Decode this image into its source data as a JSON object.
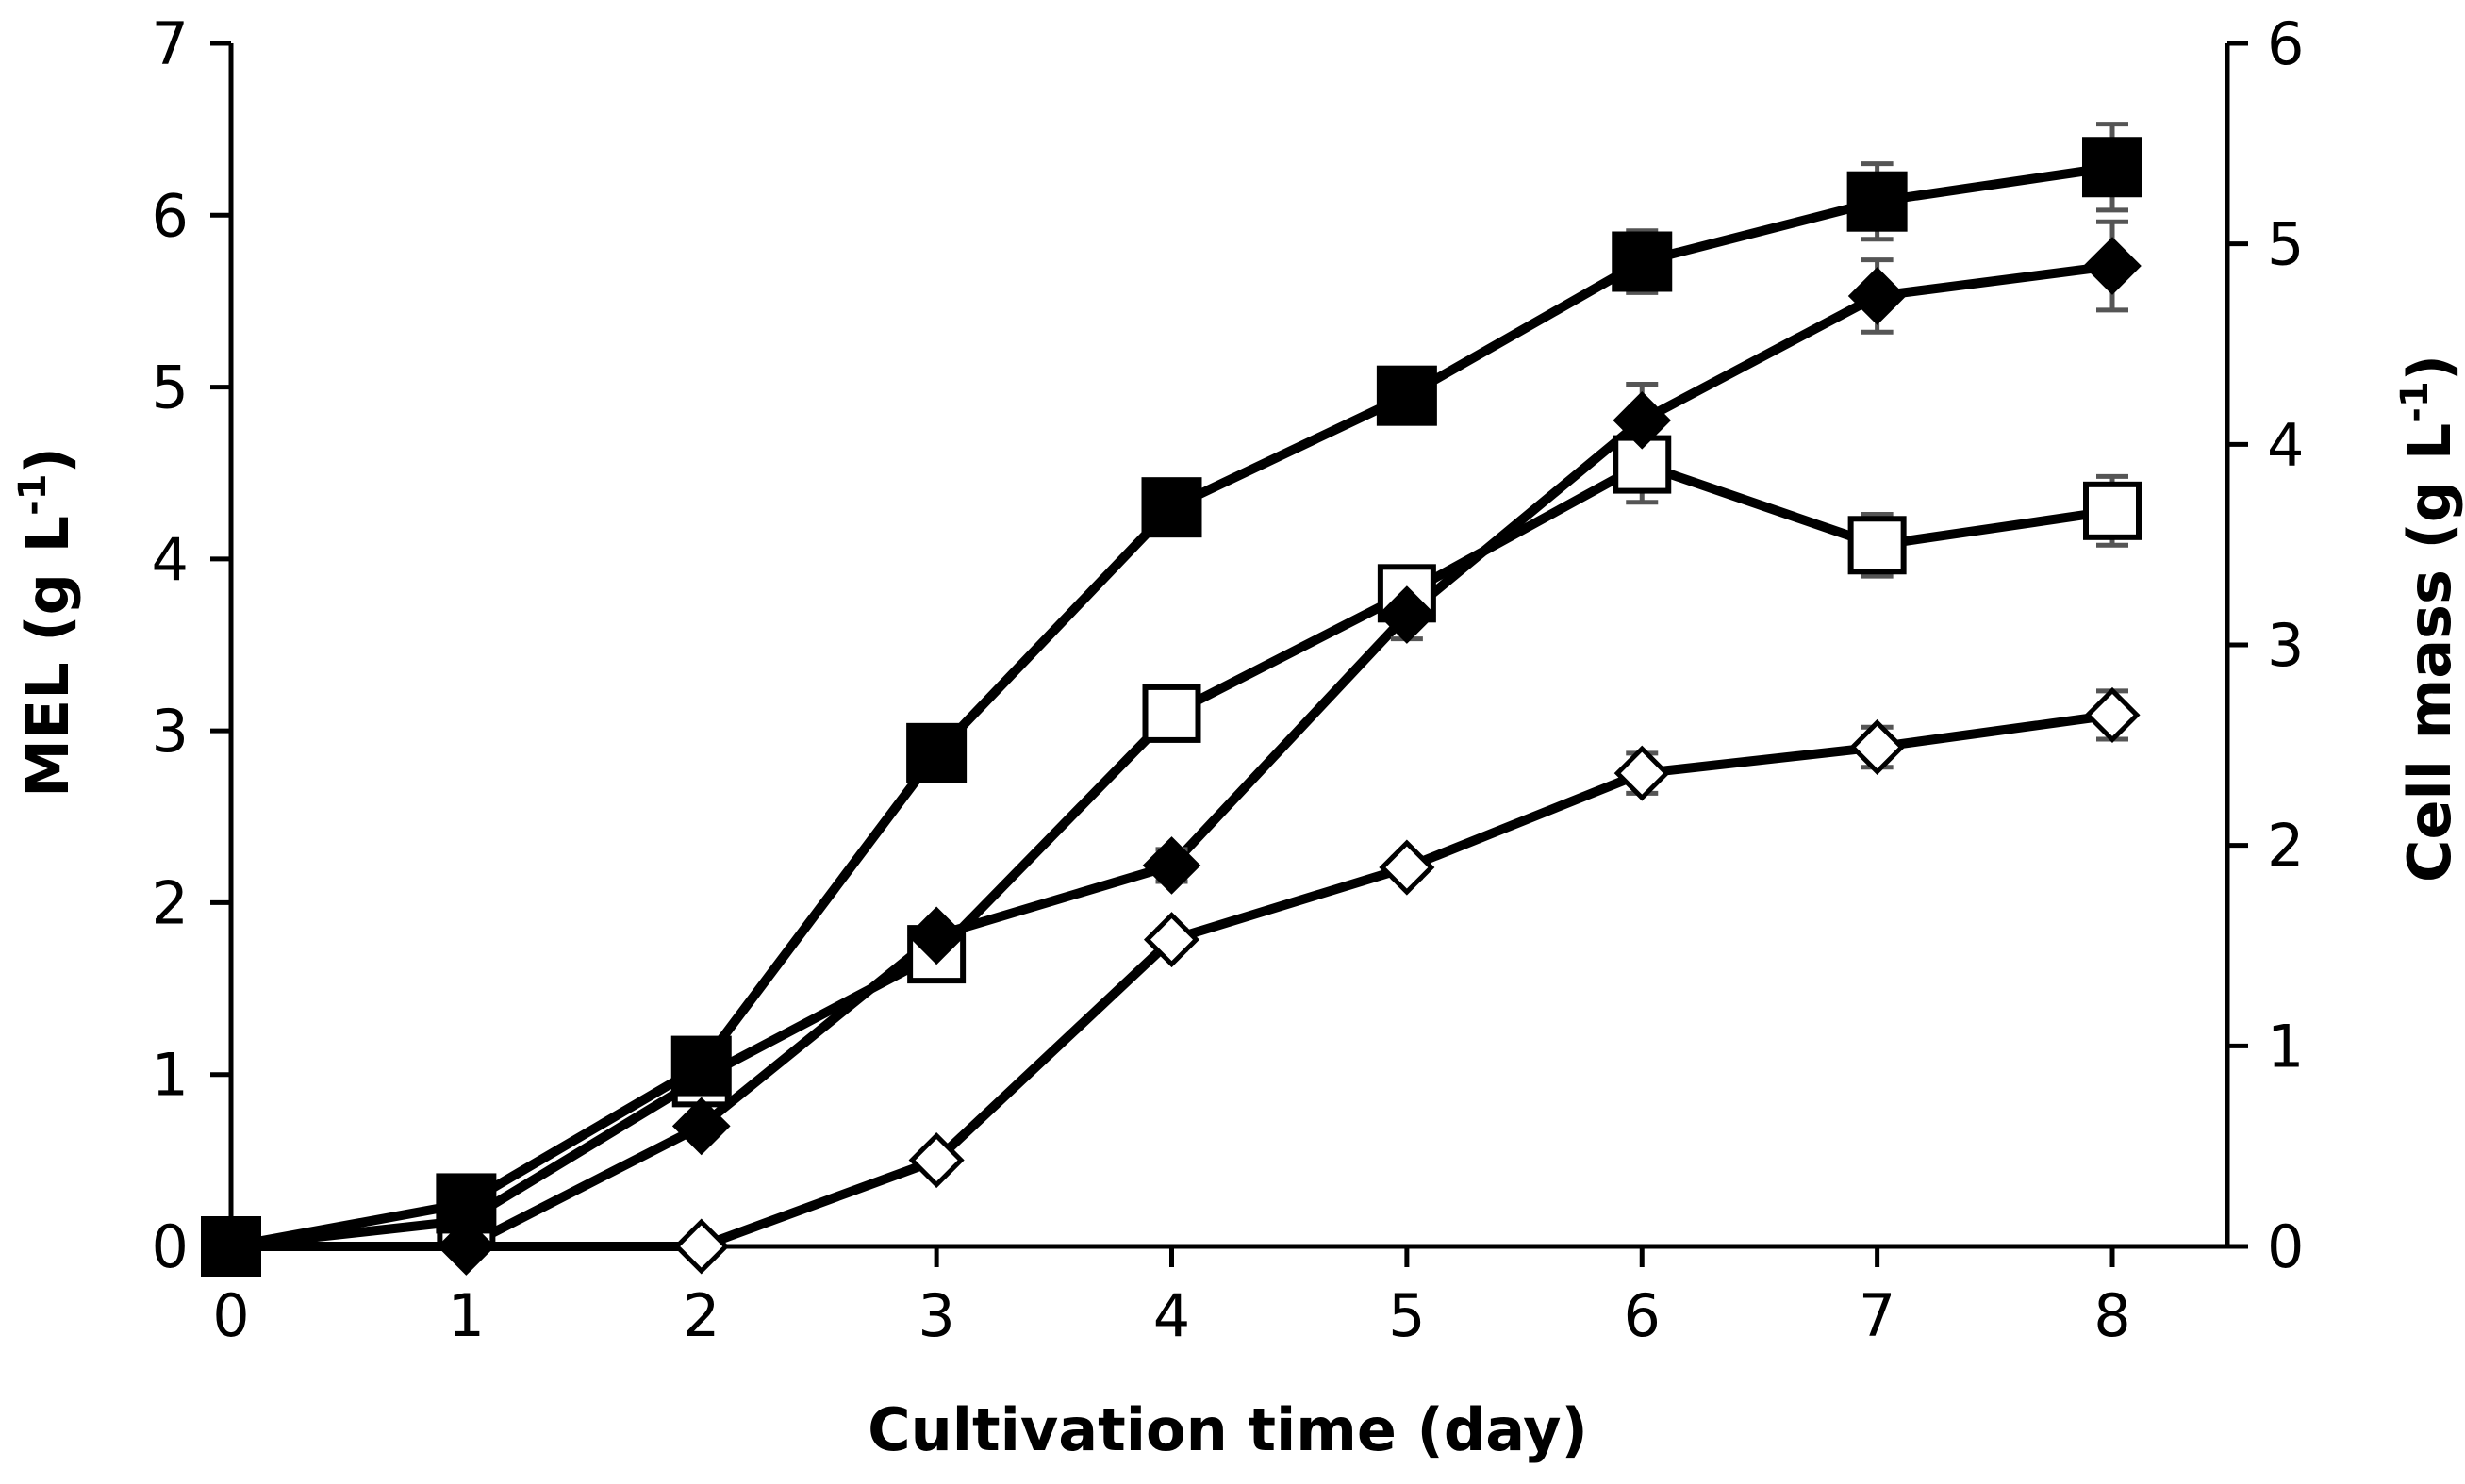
{
  "chart_data": {
    "type": "line",
    "xlabel": "Cultivation time (day)",
    "ylabel": "MEL (g L",
    "ylabel_sup": "-1",
    "ylabel_close": ")",
    "y2label": "Cell mass (g L",
    "y2label_sup": "-1",
    "y2label_close": ")",
    "x": [
      0,
      1,
      2,
      3,
      4,
      5,
      6,
      7,
      8
    ],
    "x_ticks": [
      "0",
      "1",
      "2",
      "3",
      "4",
      "5",
      "6",
      "7",
      "8"
    ],
    "ylim": [
      0,
      7
    ],
    "y_ticks": [
      "0",
      "1",
      "2",
      "3",
      "4",
      "5",
      "6",
      "7"
    ],
    "y2lim": [
      0,
      6
    ],
    "y2_ticks": [
      "0",
      "1",
      "2",
      "3",
      "4",
      "5",
      "6"
    ],
    "grid": false,
    "legend": "none",
    "series": [
      {
        "name": "MEL (filled square)",
        "axis": "left",
        "marker": "square",
        "filled": true,
        "values": [
          0,
          0.25,
          1.05,
          2.87,
          4.3,
          4.95,
          5.73,
          6.08,
          6.28
        ],
        "errors": [
          0,
          0.05,
          0.05,
          0.06,
          0.08,
          0.12,
          0.18,
          0.22,
          0.25
        ]
      },
      {
        "name": "Cell mass (filled diamond)",
        "axis": "right",
        "marker": "diamond",
        "filled": true,
        "values": [
          0,
          0.0,
          0.6,
          1.55,
          1.9,
          3.15,
          4.12,
          4.74,
          4.89
        ],
        "errors": [
          0,
          0.02,
          0.04,
          0.05,
          0.08,
          0.12,
          0.18,
          0.18,
          0.22
        ]
      },
      {
        "name": "MEL (open square)",
        "axis": "left",
        "marker": "square",
        "filled": false,
        "values": [
          0,
          0.15,
          0.98,
          1.7,
          3.1,
          3.8,
          4.55,
          4.08,
          4.28
        ],
        "errors": [
          0,
          0.04,
          0.05,
          0.08,
          0.1,
          0.12,
          0.22,
          0.18,
          0.2
        ]
      },
      {
        "name": "Cell mass (open diamond)",
        "axis": "right",
        "marker": "diamond",
        "filled": false,
        "values": [
          0,
          0.0,
          0.0,
          0.43,
          1.53,
          1.89,
          2.36,
          2.49,
          2.65
        ],
        "errors": [
          0,
          0,
          0,
          0.03,
          0.05,
          0.05,
          0.1,
          0.1,
          0.12
        ]
      }
    ]
  }
}
